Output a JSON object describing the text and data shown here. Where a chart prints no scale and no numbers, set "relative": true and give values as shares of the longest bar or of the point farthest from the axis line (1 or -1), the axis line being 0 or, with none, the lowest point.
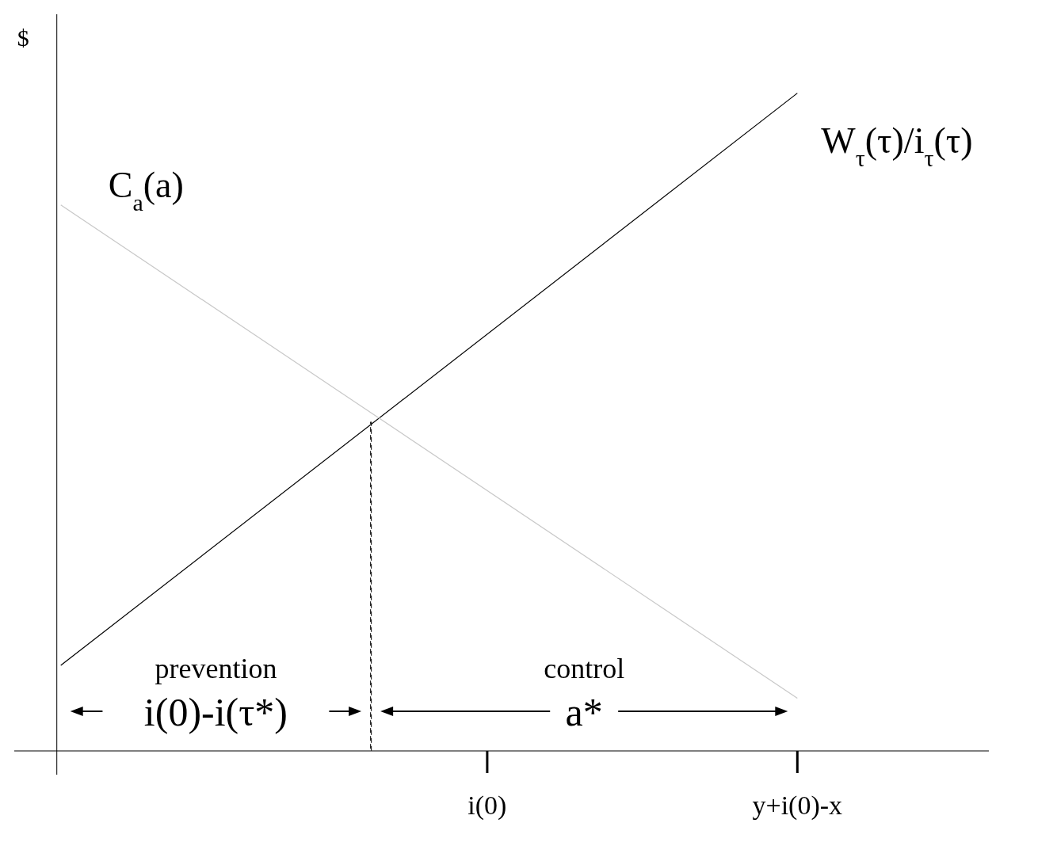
{
  "chart_data": {
    "type": "line",
    "relative": true,
    "tick_labels": "x",
    "marker": "none",
    "ylabel": "$",
    "categories": [
      null,
      null,
      null,
      null,
      null,
      null,
      null,
      null,
      null,
      null,
      null,
      "i(0)",
      null,
      null,
      null,
      null,
      null,
      null,
      null,
      "y+i(0)-x"
    ],
    "annotations": [
      "prevention",
      "i(0)-i(τ*)",
      "control",
      "a*"
    ],
    "series": [
      {
        "name": "W$_{τ}$(τ)/i$_{τ}$(τ)",
        "color": "#000000",
        "values": [
          0.13,
          null,
          null,
          null,
          null,
          null,
          null,
          null,
          null,
          null,
          null,
          null,
          null,
          null,
          null,
          null,
          null,
          null,
          null,
          1
        ]
      },
      {
        "name": "C$_{a}$(a)",
        "color": "#c8c8c8",
        "values": [
          0.83,
          null,
          null,
          null,
          null,
          null,
          null,
          null,
          null,
          null,
          null,
          null,
          null,
          null,
          null,
          null,
          null,
          null,
          null,
          0.08
        ]
      },
      {
        "type": "bar",
        "color": "#000000",
        "line_style": "dashed",
        "values": [
          null,
          null,
          null,
          null,
          null,
          null,
          null,
          null,
          0.5,
          null,
          null,
          null,
          null,
          null,
          null,
          null,
          null,
          null,
          null,
          null
        ]
      }
    ]
  }
}
